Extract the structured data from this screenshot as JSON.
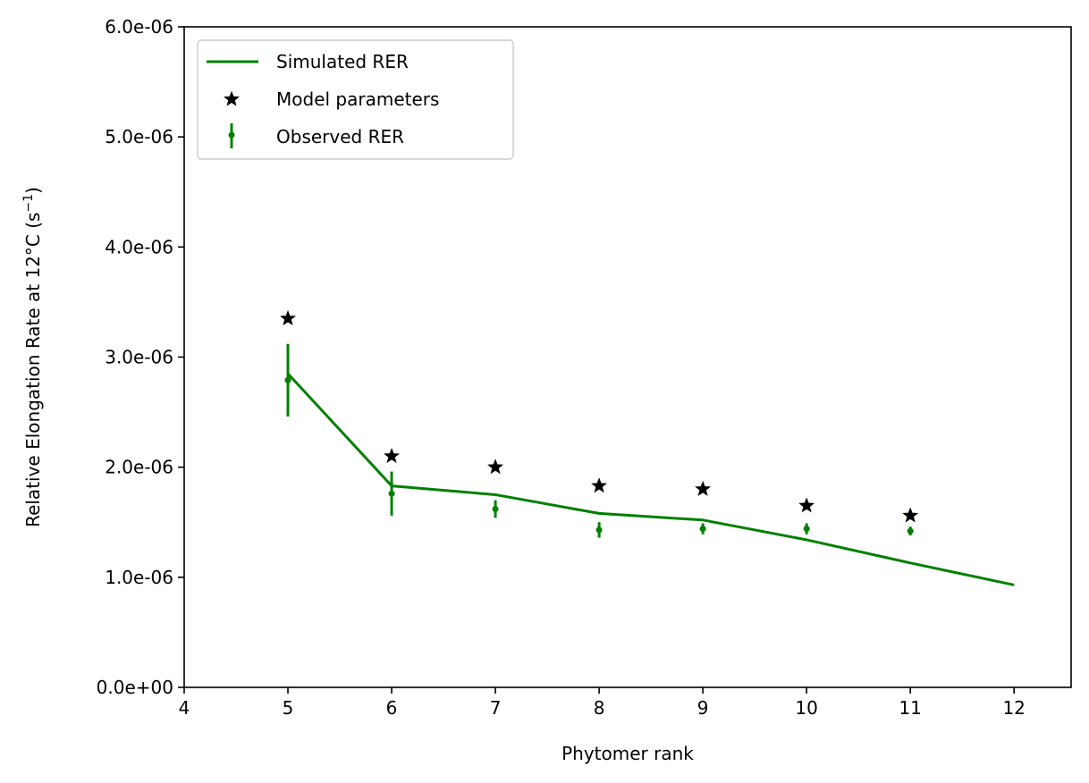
{
  "chart_data": {
    "type": "line",
    "xlabel": "Phytomer rank",
    "ylabel": "Relative Elongation Rate at 12°C (s",
    "ylabel_sup": "−1",
    "ylabel_close": ")",
    "xlim": [
      4,
      12.55
    ],
    "ylim": [
      0,
      6e-06
    ],
    "x_ticks": [
      4,
      5,
      6,
      7,
      8,
      9,
      10,
      11,
      12
    ],
    "x_tick_labels": [
      "4",
      "5",
      "6",
      "7",
      "8",
      "9",
      "10",
      "11",
      "12"
    ],
    "y_ticks": [
      0,
      1e-06,
      2e-06,
      3e-06,
      4e-06,
      5e-06,
      6e-06
    ],
    "y_tick_labels": [
      "0.0e+00",
      "1.0e-06",
      "2.0e-06",
      "3.0e-06",
      "4.0e-06",
      "5.0e-06",
      "6.0e-06"
    ],
    "grid": false,
    "legend_position": "top-left",
    "series": [
      {
        "name": "Simulated RER",
        "kind": "line",
        "color": "#008000",
        "x": [
          5,
          6,
          7,
          8,
          9,
          10,
          11,
          12
        ],
        "y": [
          2.85e-06,
          1.83e-06,
          1.75e-06,
          1.58e-06,
          1.52e-06,
          1.34e-06,
          1.13e-06,
          9.3e-07
        ]
      },
      {
        "name": "Model parameters",
        "kind": "star",
        "color": "#000000",
        "x": [
          5,
          6,
          7,
          8,
          9,
          10,
          11
        ],
        "y": [
          3.35e-06,
          2.1e-06,
          2e-06,
          1.83e-06,
          1.8e-06,
          1.65e-06,
          1.56e-06
        ]
      },
      {
        "name": "Observed RER",
        "kind": "errorbar",
        "color": "#008000",
        "x": [
          5,
          6,
          7,
          8,
          9,
          10,
          11
        ],
        "y": [
          2.79e-06,
          1.76e-06,
          1.62e-06,
          1.43e-06,
          1.44e-06,
          1.44e-06,
          1.42e-06
        ],
        "yerr": [
          3.3e-07,
          2e-07,
          8e-08,
          7e-08,
          5e-08,
          5e-08,
          4e-08
        ]
      }
    ]
  }
}
